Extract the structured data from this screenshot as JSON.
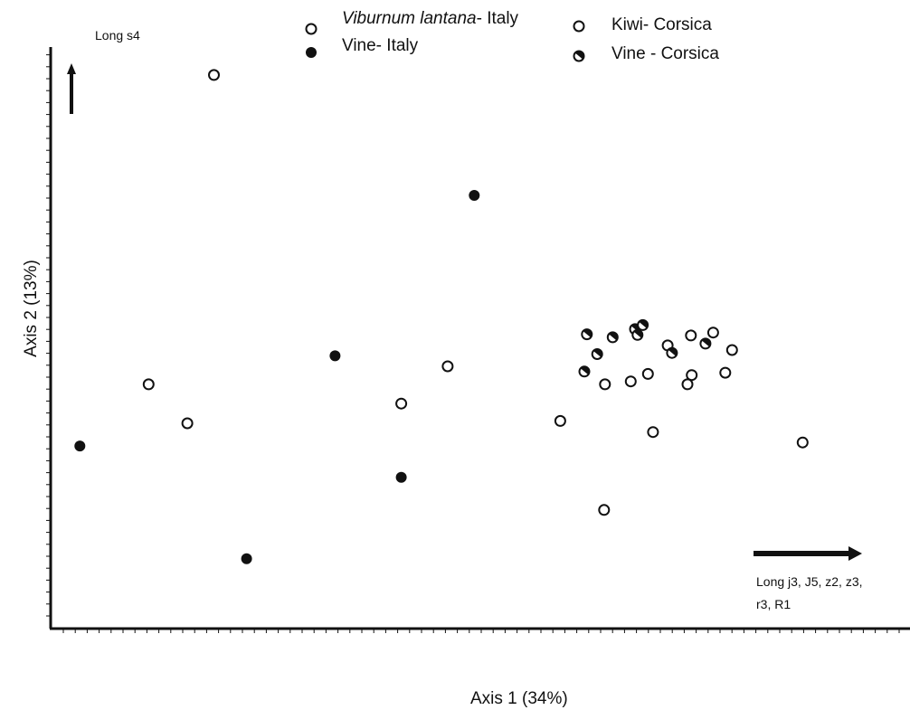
{
  "chart_data": {
    "type": "scatter",
    "xlabel": "Axis 1 (34%)",
    "ylabel": "Axis 2 (13%)",
    "xlim": [
      0,
      100
    ],
    "ylim": [
      0,
      100
    ],
    "grid": false,
    "legend_position": "top",
    "series": [
      {
        "name_italic": "Viburnum lantana",
        "name_suffix": "- Italy",
        "marker": "open-circle",
        "points": [
          [
            19.0,
            95.2
          ],
          [
            11.4,
            42.0
          ],
          [
            15.9,
            35.3
          ],
          [
            40.8,
            38.7
          ],
          [
            46.2,
            45.1
          ],
          [
            59.3,
            35.7
          ],
          [
            64.4,
            20.4
          ],
          [
            70.1,
            33.8
          ],
          [
            74.6,
            43.6
          ],
          [
            87.5,
            32.0
          ]
        ]
      },
      {
        "name": "Vine- Italy",
        "marker": "filled-circle",
        "points": [
          [
            3.4,
            31.4
          ],
          [
            33.1,
            46.9
          ],
          [
            49.3,
            74.5
          ],
          [
            40.8,
            26.0
          ],
          [
            22.8,
            12.0
          ]
        ]
      },
      {
        "name": "Kiwi- Corsica",
        "marker": "open-circle",
        "points": [
          [
            64.5,
            42.0
          ],
          [
            67.5,
            42.5
          ],
          [
            69.5,
            43.8
          ],
          [
            71.8,
            48.7
          ],
          [
            74.1,
            42.0
          ],
          [
            74.5,
            50.4
          ],
          [
            77.1,
            50.9
          ],
          [
            79.3,
            47.9
          ],
          [
            78.5,
            44.0
          ]
        ]
      },
      {
        "name": "Vine - Corsica",
        "marker": "half-circle",
        "points": [
          [
            62.4,
            50.6
          ],
          [
            63.6,
            47.2
          ],
          [
            65.4,
            50.1
          ],
          [
            68.0,
            51.5
          ],
          [
            68.3,
            50.5
          ],
          [
            68.9,
            52.2
          ],
          [
            72.3,
            47.4
          ],
          [
            76.2,
            49.0
          ],
          [
            62.1,
            44.2
          ]
        ]
      }
    ],
    "vectors": [
      {
        "label": "Long s4",
        "direction": "up"
      },
      {
        "label_lines": [
          "Long j3, J5, z2, z3,",
          "r3, R1"
        ],
        "direction": "right"
      }
    ]
  },
  "colors": {
    "ink": "#111111",
    "background": "#ffffff"
  }
}
